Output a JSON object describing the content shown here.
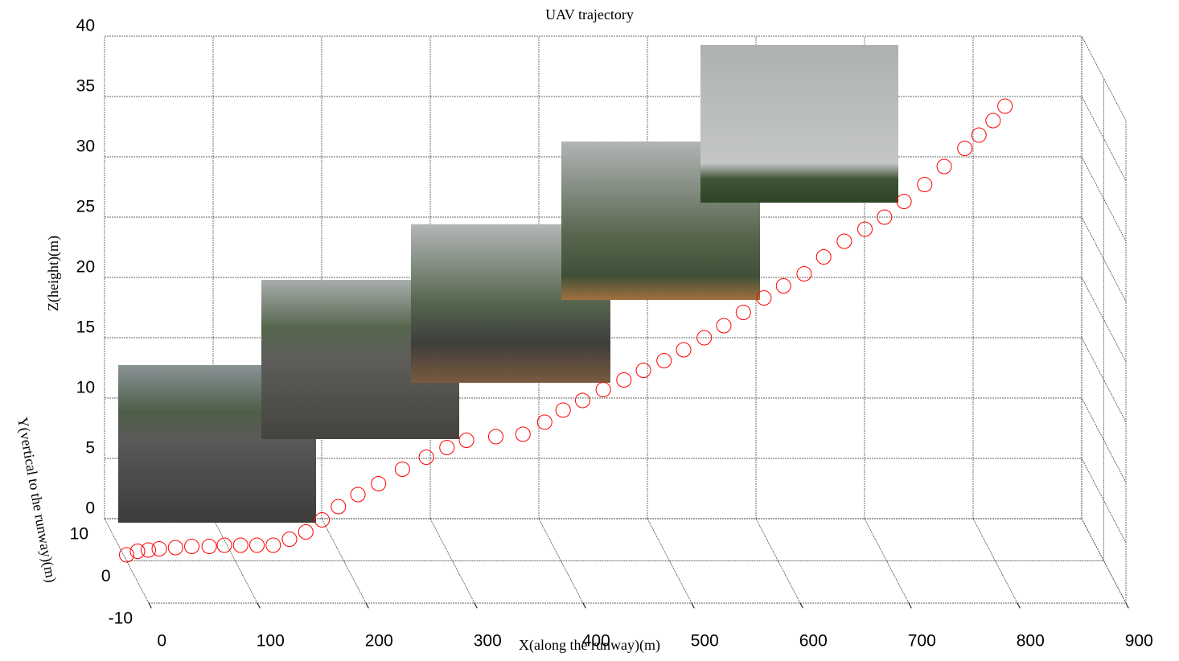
{
  "chart_data": {
    "type": "scatter3d",
    "title": "UAV trajectory",
    "xlabel": "X(along the runway)(m)",
    "ylabel": "Y(vertical to the runway)(m)",
    "zlabel": "Z(height)(m)",
    "color": "#ff0000",
    "grid": true,
    "xlim": [
      0,
      900
    ],
    "ylim": [
      -10,
      10
    ],
    "zlim": [
      0,
      40
    ],
    "xticks": [
      0,
      100,
      200,
      300,
      400,
      500,
      600,
      700,
      800,
      900
    ],
    "yticks": [
      -10,
      0,
      10
    ],
    "zticks": [
      0,
      5,
      10,
      15,
      20,
      25,
      30,
      35,
      40
    ],
    "x": [
      0,
      10,
      20,
      30,
      45,
      60,
      76,
      90,
      105,
      120,
      135,
      150,
      165,
      180,
      195,
      213,
      232,
      254,
      276,
      295,
      313,
      340,
      365,
      385,
      402,
      420,
      439,
      458,
      476,
      495,
      513,
      532,
      550,
      568,
      587,
      605,
      624,
      642,
      661,
      680,
      698,
      716,
      735,
      753,
      772,
      785,
      798,
      809
    ],
    "y": [
      0,
      0,
      0,
      0,
      0,
      0,
      0,
      0,
      0,
      0,
      0,
      0,
      0,
      0,
      0,
      0,
      0,
      0,
      0,
      0,
      0,
      0,
      0,
      0,
      0,
      0,
      0,
      0,
      0,
      0,
      0,
      0,
      0,
      0,
      0,
      0,
      0,
      0,
      0,
      0,
      0,
      0,
      0,
      0,
      0,
      0,
      0,
      0
    ],
    "z": [
      0.5,
      0.8,
      0.9,
      1.0,
      1.1,
      1.2,
      1.2,
      1.3,
      1.3,
      1.3,
      1.3,
      1.8,
      2.4,
      3.4,
      4.5,
      5.5,
      6.4,
      7.6,
      8.6,
      9.4,
      10,
      10.3,
      10.5,
      11.5,
      12.5,
      13.3,
      14.2,
      15,
      15.8,
      16.6,
      17.5,
      18.5,
      19.5,
      20.6,
      21.8,
      22.8,
      23.8,
      25.2,
      26.5,
      27.5,
      28.5,
      29.8,
      31.2,
      32.7,
      34.2,
      35.3,
      36.5,
      37.7
    ]
  }
}
